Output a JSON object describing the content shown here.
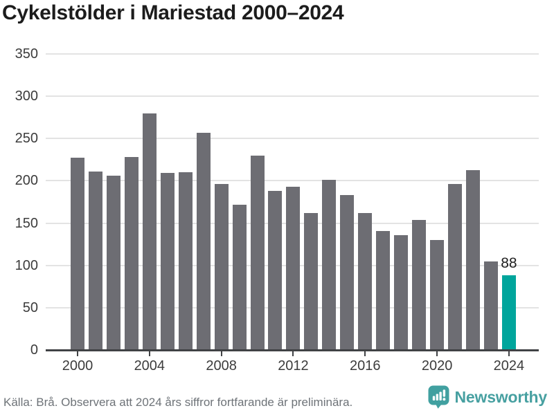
{
  "title": "Cykelstölder i Mariestad 2000–2024",
  "chart_data": {
    "type": "bar",
    "title": "Cykelstölder i Mariestad 2000–2024",
    "x": [
      2000,
      2001,
      2002,
      2003,
      2004,
      2005,
      2006,
      2007,
      2008,
      2009,
      2010,
      2011,
      2012,
      2013,
      2014,
      2015,
      2016,
      2017,
      2018,
      2019,
      2020,
      2021,
      2022,
      2023,
      2024
    ],
    "values": [
      227,
      211,
      206,
      228,
      280,
      209,
      210,
      257,
      196,
      172,
      230,
      188,
      193,
      162,
      201,
      183,
      162,
      141,
      136,
      154,
      130,
      196,
      213,
      105,
      88
    ],
    "ylim": [
      0,
      350
    ],
    "yticks": [
      0,
      50,
      100,
      150,
      200,
      250,
      300,
      350
    ],
    "xticks": [
      2000,
      2004,
      2008,
      2012,
      2016,
      2020,
      2024
    ],
    "grid": "horizontal gridlines, light gray",
    "legend_position": "none",
    "xlabel": "",
    "ylabel": "",
    "bar_color": "#6d6d73",
    "highlight": {
      "index": 24,
      "color": "#00a59c",
      "label": "88"
    }
  },
  "footer": {
    "source_note": "Källa: Brå. Observera att 2024 års siffror fortfarande är preliminära."
  },
  "branding": {
    "logo_text": "Newsworthy",
    "logo_icon": "newsworthy-speech-bubble-bar-chart-icon",
    "logo_color": "#47a0a1"
  }
}
